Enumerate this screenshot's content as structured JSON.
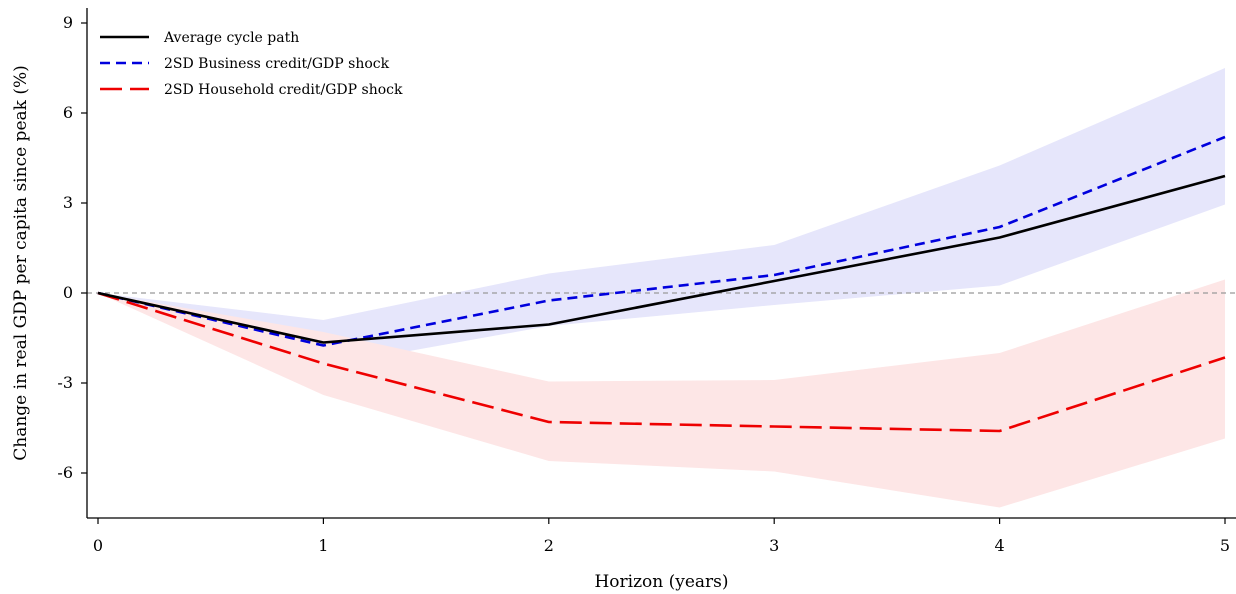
{
  "chart_data": {
    "type": "line",
    "title": "",
    "xlabel": "Horizon (years)",
    "ylabel": "Change in real GDP per capita since peak (%)",
    "x": [
      0,
      1,
      2,
      3,
      4,
      5
    ],
    "xlim": [
      0,
      5
    ],
    "ylim": [
      -7.5,
      9.5
    ],
    "xticks": [
      "0",
      "1",
      "2",
      "3",
      "4",
      "5"
    ],
    "yticks": [
      "-6",
      "-3",
      "0",
      "3",
      "6",
      "9"
    ],
    "reference_line": {
      "y": 0,
      "color": "#999999",
      "style": "dashed"
    },
    "legend_position": "top-left",
    "series": [
      {
        "name": "Average cycle path",
        "values": [
          0,
          -1.65,
          -1.05,
          0.4,
          1.85,
          3.9
        ],
        "color": "#000000",
        "style": "solid"
      },
      {
        "name": "2SD Business credit/GDP shock",
        "values": [
          0,
          -1.75,
          -0.25,
          0.6,
          2.2,
          5.2
        ],
        "color": "#0000dd",
        "style": "dashed",
        "band_lower": [
          0,
          -2.45,
          -1.1,
          -0.4,
          0.25,
          2.95
        ],
        "band_upper": [
          0,
          -0.9,
          0.65,
          1.6,
          4.25,
          7.5
        ],
        "band_color": "#e6e6fb"
      },
      {
        "name": "2SD Household credit/GDP shock",
        "values": [
          0,
          -2.35,
          -4.3,
          -4.45,
          -4.6,
          -2.15
        ],
        "color": "#ee0000",
        "style": "longdash",
        "band_lower": [
          0,
          -3.4,
          -5.6,
          -5.95,
          -7.15,
          -4.85
        ],
        "band_upper": [
          0,
          -1.3,
          -2.95,
          -2.9,
          -2.0,
          0.45
        ],
        "band_color": "#fde6e6"
      }
    ]
  }
}
